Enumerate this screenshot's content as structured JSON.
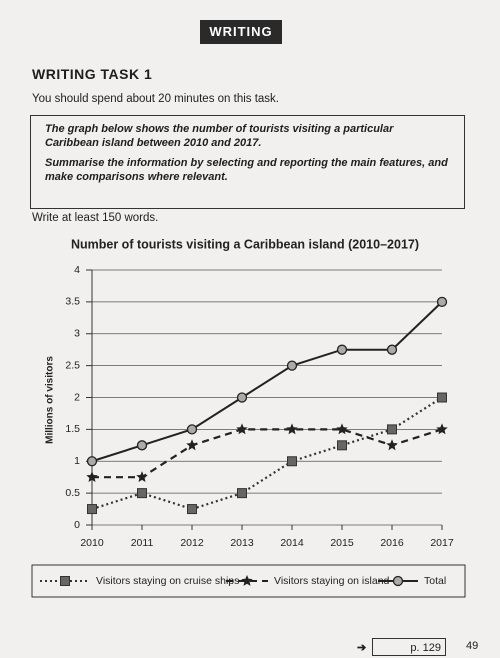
{
  "header": {
    "badge": "WRITING"
  },
  "task_title": "WRITING TASK 1",
  "instruction": "You should spend about 20 minutes on this task.",
  "prompt": [
    "The graph below shows the number of tourists visiting a particular Caribbean island between 2010 and 2017.",
    "Summarise the information by selecting and reporting the main features, and make comparisons where relevant."
  ],
  "word_count": "Write at least 150 words.",
  "chart_data": {
    "type": "line",
    "title": "Number of tourists visiting a Caribbean island (2010–2017)",
    "y_label": "Millions of visitors",
    "categories": [
      "2010",
      "2011",
      "2012",
      "2013",
      "2014",
      "2015",
      "2016",
      "2017"
    ],
    "ylim": [
      0,
      4
    ],
    "yticks": [
      0,
      0.5,
      1,
      1.5,
      2,
      2.5,
      3,
      3.5,
      4
    ],
    "grid": true,
    "series": [
      {
        "name": "Visitors staying on cruise ships",
        "color": "#333333",
        "values": [
          0.25,
          0.5,
          0.25,
          0.5,
          1,
          1.25,
          1.5,
          2
        ]
      },
      {
        "name": "Visitors staying on island",
        "color": "#222222",
        "values": [
          0.75,
          0.75,
          1.25,
          1.5,
          1.5,
          1.5,
          1.25,
          1.5
        ]
      },
      {
        "name": "Total",
        "color": "#222222",
        "values": [
          1,
          1.25,
          1.5,
          2,
          2.5,
          2.75,
          2.75,
          3.5
        ]
      }
    ]
  },
  "footer": {
    "page_ref": "p. 129",
    "page_number": "49"
  }
}
